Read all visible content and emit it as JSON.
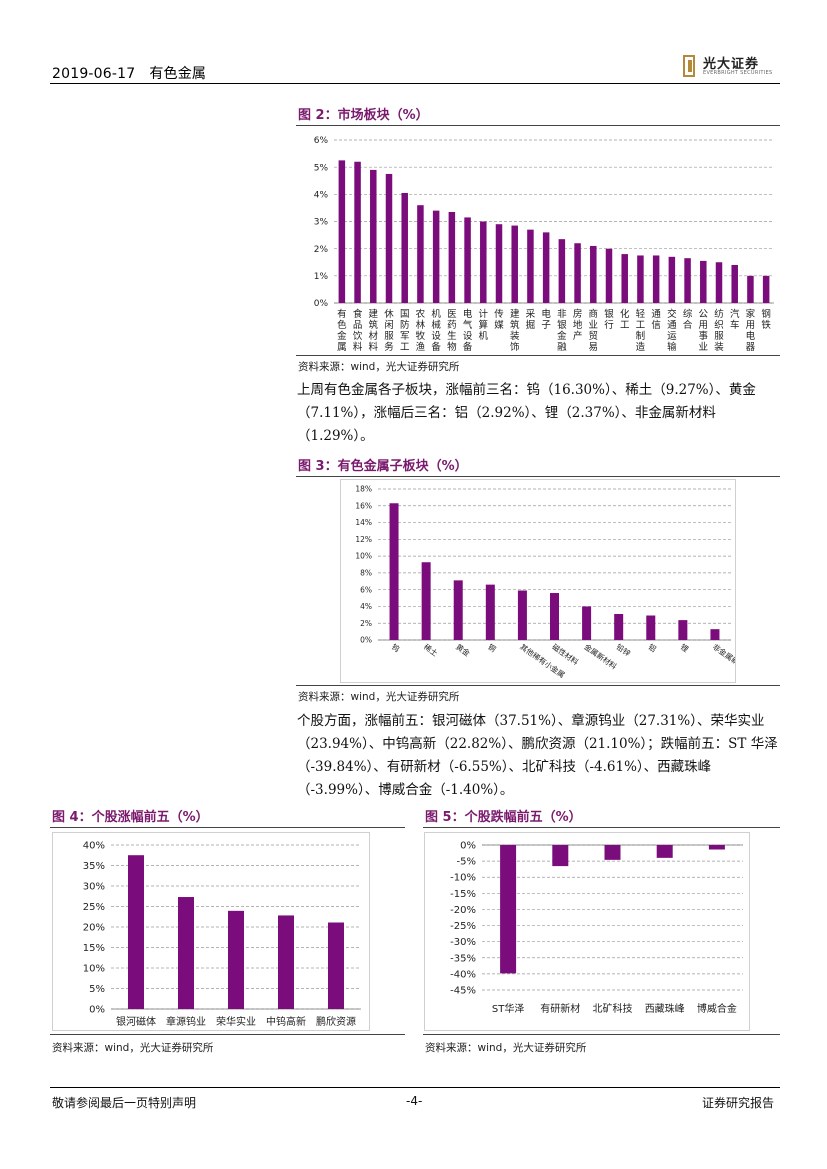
{
  "header": {
    "date": "2019-06-17",
    "sector": "有色金属",
    "logo_cn": "光大证券",
    "logo_en": "EVERBRIGHT SECURITIES"
  },
  "figures": {
    "fig2": {
      "title": "图 2：市场板块（%）",
      "source": "资料来源：wind，光大证券研究所"
    },
    "fig3": {
      "title": "图 3：有色金属子板块（%）",
      "source": "资料来源：wind，光大证券研究所"
    },
    "fig4": {
      "title": "图 4：个股涨幅前五（%）",
      "source": "资料来源：wind，光大证券研究所"
    },
    "fig5": {
      "title": "图 5：个股跌幅前五（%）",
      "source": "资料来源：wind，光大证券研究所"
    }
  },
  "paragraphs": {
    "p1": "上周有色金属各子板块，涨幅前三名：钨（16.30%）、稀土（9.27%）、黄金（7.11%），涨幅后三名：铝（2.92%）、锂（2.37%）、非金属新材料（1.29%）。",
    "p2": "个股方面，涨幅前五：银河磁体（37.51%）、章源钨业（27.31%）、荣华实业（23.94%）、中钨高新（22.82%）、鹏欣资源（21.10%）；跌幅前五：ST 华泽（-39.84%）、有研新材（-6.55%）、北矿科技（-4.61%）、西藏珠峰（-3.99%）、博威合金（-1.40%）。"
  },
  "footer": {
    "left": "敬请参阅最后一页特别声明",
    "center": "-4-",
    "right": "证券研究报告"
  },
  "colors": {
    "bar": "#7b0c7b",
    "title": "#7a1a6d"
  },
  "chart_data": [
    {
      "type": "bar",
      "id": "fig2",
      "categories": [
        "有色金属",
        "食品饮料",
        "建筑材料",
        "休闲服务",
        "国防军工",
        "农林牧渔",
        "机械设备",
        "医药生物",
        "电气设备",
        "计算机",
        "传媒",
        "建筑装饰",
        "采掘",
        "电子",
        "非银金融",
        "房地产",
        "商业贸易",
        "银行",
        "化工",
        "轻工制造",
        "通信",
        "交通运输",
        "综合",
        "公用事业",
        "纺织服装",
        "汽车",
        "家用电器",
        "钢铁"
      ],
      "values": [
        5.25,
        5.2,
        4.9,
        4.75,
        4.05,
        3.6,
        3.4,
        3.35,
        3.15,
        3.0,
        2.9,
        2.85,
        2.7,
        2.6,
        2.35,
        2.2,
        2.1,
        2.0,
        1.8,
        1.75,
        1.75,
        1.7,
        1.65,
        1.55,
        1.5,
        1.4,
        1.0,
        1.0
      ],
      "yticks": [
        "0%",
        "1%",
        "2%",
        "3%",
        "4%",
        "5%",
        "6%"
      ],
      "ylim": [
        0,
        6
      ],
      "grid": true
    },
    {
      "type": "bar",
      "id": "fig3",
      "categories": [
        "钨",
        "稀土",
        "黄金",
        "铜",
        "其他稀有小金属",
        "磁性材料",
        "金属新材料",
        "铅锌",
        "铝",
        "锂",
        "非金属新材料"
      ],
      "values": [
        16.3,
        9.27,
        7.11,
        6.6,
        5.9,
        5.6,
        4.0,
        3.1,
        2.92,
        2.37,
        1.29
      ],
      "yticks": [
        "0%",
        "2%",
        "4%",
        "6%",
        "8%",
        "10%",
        "12%",
        "14%",
        "16%",
        "18%"
      ],
      "ylim": [
        0,
        18
      ],
      "grid": true
    },
    {
      "type": "bar",
      "id": "fig4",
      "categories": [
        "银河磁体",
        "章源钨业",
        "荣华实业",
        "中钨高新",
        "鹏欣资源"
      ],
      "values": [
        37.51,
        27.31,
        23.94,
        22.82,
        21.1
      ],
      "yticks": [
        "0%",
        "5%",
        "10%",
        "15%",
        "20%",
        "25%",
        "30%",
        "35%",
        "40%"
      ],
      "ylim": [
        0,
        40
      ],
      "grid": true
    },
    {
      "type": "bar",
      "id": "fig5",
      "categories": [
        "ST华泽",
        "有研新材",
        "北矿科技",
        "西藏珠峰",
        "博威合金"
      ],
      "values": [
        -39.84,
        -6.55,
        -4.61,
        -3.99,
        -1.4
      ],
      "yticks": [
        "0%",
        "-5%",
        "-10%",
        "-15%",
        "-20%",
        "-25%",
        "-30%",
        "-35%",
        "-40%",
        "-45%"
      ],
      "ylim": [
        -45,
        0
      ],
      "grid": true
    }
  ]
}
